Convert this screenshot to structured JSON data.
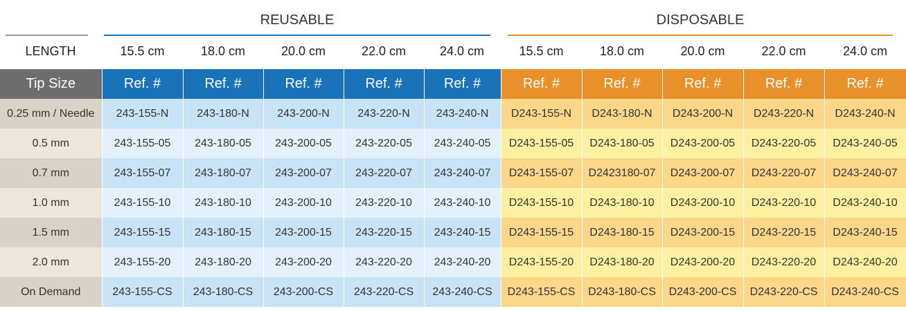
{
  "groups": {
    "reusable": "REUSABLE",
    "disposable": "DISPOSABLE"
  },
  "length_label": "LENGTH",
  "lengths": [
    "15.5 cm",
    "18.0 cm",
    "20.0 cm",
    "22.0 cm",
    "24.0 cm"
  ],
  "header": {
    "tip_size": "Tip Size",
    "ref": "Ref. #"
  },
  "colors": {
    "reusable_accent": "#1a73b8",
    "disposable_accent": "#e8902a",
    "tip_header": "#6d6d6d"
  },
  "rows": [
    {
      "tip": "0.25 mm / Needle",
      "reusable": [
        "243-155-N",
        "243-180-N",
        "243-200-N",
        "243-220-N",
        "243-240-N"
      ],
      "disposable": [
        "D243-155-N",
        "D243-180-N",
        "D243-200-N",
        "D243-220-N",
        "D243-240-N"
      ]
    },
    {
      "tip": "0.5 mm",
      "reusable": [
        "243-155-05",
        "243-180-05",
        "243-200-05",
        "243-220-05",
        "243-240-05"
      ],
      "disposable": [
        "D243-155-05",
        "D243-180-05",
        "D243-200-05",
        "D243-220-05",
        "D243-240-05"
      ]
    },
    {
      "tip": "0.7 mm",
      "reusable": [
        "243-155-07",
        "243-180-07",
        "243-200-07",
        "243-220-07",
        "243-240-07"
      ],
      "disposable": [
        "D243-155-07",
        "D2423180-07",
        "D243-200-07",
        "D243-220-07",
        "D243-240-07"
      ]
    },
    {
      "tip": "1.0 mm",
      "reusable": [
        "243-155-10",
        "243-180-10",
        "243-200-10",
        "243-220-10",
        "243-240-10"
      ],
      "disposable": [
        "D243-155-10",
        "D243-180-10",
        "D243-200-10",
        "D243-220-10",
        "D243-240-10"
      ]
    },
    {
      "tip": "1.5 mm",
      "reusable": [
        "243-155-15",
        "243-180-15",
        "243-200-15",
        "243-220-15",
        "243-240-15"
      ],
      "disposable": [
        "D243-155-15",
        "D243-180-15",
        "D243-200-15",
        "D243-220-15",
        "D243-240-15"
      ]
    },
    {
      "tip": "2.0 mm",
      "reusable": [
        "243-155-20",
        "243-180-20",
        "243-200-20",
        "243-220-20",
        "243-240-20"
      ],
      "disposable": [
        "D243-155-20",
        "D243-180-20",
        "D243-200-20",
        "D243-220-20",
        "D243-240-20"
      ]
    },
    {
      "tip": "On Demand",
      "reusable": [
        "243-155-CS",
        "243-180-CS",
        "243-200-CS",
        "243-220-CS",
        "243-240-CS"
      ],
      "disposable": [
        "D243-155-CS",
        "D243-180-CS",
        "D243-200-CS",
        "D243-220-CS",
        "D243-240-CS"
      ]
    }
  ]
}
